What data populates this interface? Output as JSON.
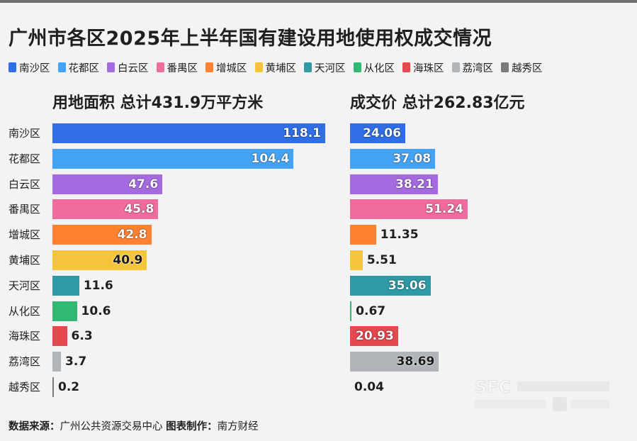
{
  "title": "广州市各区2025年上半年国有建设用地使用权成交情况",
  "legend": [
    {
      "name": "南沙区",
      "color": "#2f6ee6"
    },
    {
      "name": "花都区",
      "color": "#45a3f6"
    },
    {
      "name": "白云区",
      "color": "#a56ae0"
    },
    {
      "name": "番禺区",
      "color": "#f06c9e"
    },
    {
      "name": "增城区",
      "color": "#fc8232"
    },
    {
      "name": "黄埔区",
      "color": "#f4c43c"
    },
    {
      "name": "天河区",
      "color": "#2e9aa5"
    },
    {
      "name": "从化区",
      "color": "#33b873"
    },
    {
      "name": "海珠区",
      "color": "#e5484f"
    },
    {
      "name": "荔湾区",
      "color": "#b1b4b8"
    },
    {
      "name": "越秀区",
      "color": "#7b7b7b"
    }
  ],
  "subtitles": {
    "land": "用地面积 总计431.9万平方米",
    "price": "成交价 总计262.83亿元"
  },
  "chart_data": {
    "type": "bar",
    "orientation": "horizontal",
    "categories": [
      "南沙区",
      "花都区",
      "白云区",
      "番禺区",
      "增城区",
      "黄埔区",
      "天河区",
      "从化区",
      "海珠区",
      "荔湾区",
      "越秀区"
    ],
    "series": [
      {
        "values": [
          118.1,
          104.4,
          47.6,
          45.8,
          42.8,
          40.9,
          11.6,
          10.6,
          6.3,
          3.7,
          0.2
        ]
      },
      {
        "values": [
          24.06,
          37.08,
          38.21,
          51.24,
          11.35,
          5.51,
          35.06,
          0.67,
          20.93,
          38.69,
          0.04
        ]
      }
    ],
    "value_labels": {
      "land": [
        "118.1",
        "104.4",
        "47.6",
        "45.8",
        "42.8",
        "40.9",
        "11.6",
        "10.6",
        "6.3",
        "3.7",
        "0.2"
      ],
      "price": [
        "24.06",
        "37.08",
        "38.21",
        "51.24",
        "11.35",
        "5.51",
        "35.06",
        "0.67",
        "20.93",
        "38.69",
        "0.04"
      ]
    }
  },
  "source": {
    "label1": "数据来源：",
    "text1": "广州公共资源交易中心",
    "label2": "图表制作：",
    "text2": "南方财经"
  }
}
